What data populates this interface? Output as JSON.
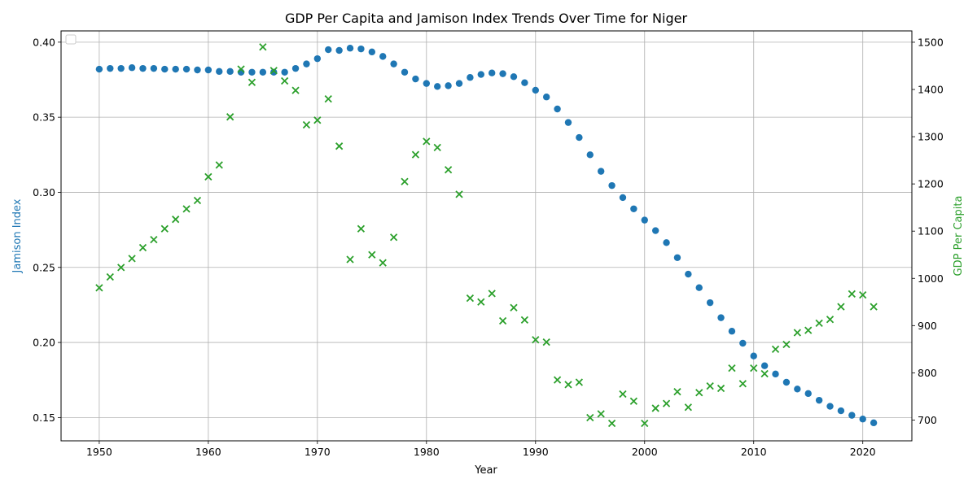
{
  "chart_data": {
    "type": "scatter",
    "title": "GDP Per Capita and Jamison Index Trends Over Time for Niger",
    "xlabel": "Year",
    "xlim": [
      1946.5,
      2024.5
    ],
    "xticks": [
      1950,
      1960,
      1970,
      1980,
      1990,
      2000,
      2010,
      2020
    ],
    "grid": true,
    "legend": {
      "placement": "upper-left",
      "entries": []
    },
    "left_axis": {
      "label": "Jamison Index",
      "color": "#1f77b4",
      "ylim": [
        0.1345,
        0.4075
      ],
      "ticks": [
        0.15,
        0.2,
        0.25,
        0.3,
        0.35,
        0.4
      ],
      "tick_labels": [
        "0.15",
        "0.20",
        "0.25",
        "0.30",
        "0.35",
        "0.40"
      ]
    },
    "right_axis": {
      "label": "GDP Per Capita",
      "color": "#2ca02c",
      "ylim": [
        656,
        1524
      ],
      "ticks": [
        700,
        800,
        900,
        1000,
        1100,
        1200,
        1300,
        1400,
        1500
      ],
      "tick_labels": [
        "700",
        "800",
        "900",
        "1000",
        "1100",
        "1200",
        "1300",
        "1400",
        "1500"
      ]
    },
    "series": [
      {
        "axis": "left",
        "marker": "circle",
        "color": "#1f77b4",
        "x": [
          1950,
          1951,
          1952,
          1953,
          1954,
          1955,
          1956,
          1957,
          1958,
          1959,
          1960,
          1961,
          1962,
          1963,
          1964,
          1965,
          1966,
          1967,
          1968,
          1969,
          1970,
          1971,
          1972,
          1973,
          1974,
          1975,
          1976,
          1977,
          1978,
          1979,
          1980,
          1981,
          1982,
          1983,
          1984,
          1985,
          1986,
          1987,
          1988,
          1989,
          1990,
          1991,
          1992,
          1993,
          1994,
          1995,
          1996,
          1997,
          1998,
          1999,
          2000,
          2001,
          2002,
          2003,
          2004,
          2005,
          2006,
          2007,
          2008,
          2009,
          2010,
          2011,
          2012,
          2013,
          2014,
          2015,
          2016,
          2017,
          2018,
          2019,
          2020,
          2021
        ],
        "y": [
          0.382,
          0.3825,
          0.3825,
          0.383,
          0.3825,
          0.3825,
          0.382,
          0.382,
          0.382,
          0.3815,
          0.3815,
          0.3805,
          0.3805,
          0.38,
          0.38,
          0.38,
          0.38,
          0.38,
          0.3825,
          0.3855,
          0.389,
          0.395,
          0.3945,
          0.396,
          0.3955,
          0.3935,
          0.3905,
          0.3855,
          0.38,
          0.3755,
          0.3725,
          0.3705,
          0.371,
          0.3725,
          0.3765,
          0.3785,
          0.3795,
          0.379,
          0.377,
          0.373,
          0.368,
          0.3635,
          0.3555,
          0.3465,
          0.3365,
          0.325,
          0.314,
          0.3045,
          0.2965,
          0.289,
          0.2815,
          0.2745,
          0.2665,
          0.2565,
          0.2455,
          0.2365,
          0.2265,
          0.2165,
          0.2075,
          0.1995,
          0.191,
          0.1845,
          0.179,
          0.1735,
          0.169,
          0.166,
          0.1615,
          0.1575,
          0.1545,
          0.1515,
          0.149,
          0.1465
        ]
      },
      {
        "axis": "right",
        "marker": "x",
        "color": "#2ca02c",
        "x": [
          1950,
          1951,
          1952,
          1953,
          1954,
          1955,
          1956,
          1957,
          1958,
          1959,
          1960,
          1961,
          1962,
          1963,
          1964,
          1965,
          1966,
          1967,
          1968,
          1969,
          1970,
          1971,
          1972,
          1973,
          1974,
          1975,
          1976,
          1977,
          1978,
          1979,
          1980,
          1981,
          1982,
          1983,
          1984,
          1985,
          1986,
          1987,
          1988,
          1989,
          1990,
          1991,
          1992,
          1993,
          1994,
          1995,
          1996,
          1997,
          1998,
          1999,
          2000,
          2001,
          2002,
          2003,
          2004,
          2005,
          2006,
          2007,
          2008,
          2009,
          2010,
          2011,
          2012,
          2013,
          2014,
          2015,
          2016,
          2017,
          2018,
          2019,
          2020,
          2021
        ],
        "y": [
          980,
          1003,
          1023,
          1042,
          1065,
          1082,
          1105,
          1125,
          1147,
          1165,
          1215,
          1240,
          1342,
          1443,
          1415,
          1490,
          1440,
          1418,
          1398,
          1325,
          1335,
          1380,
          1280,
          1040,
          1105,
          1050,
          1033,
          1087,
          1205,
          1262,
          1290,
          1277,
          1230,
          1178,
          958,
          950,
          968,
          910,
          938,
          912,
          870,
          865,
          785,
          775,
          780,
          705,
          713,
          693,
          755,
          740,
          693,
          725,
          735,
          760,
          727,
          758,
          772,
          767,
          810,
          777,
          810,
          798,
          850,
          860,
          885,
          890,
          905,
          913,
          940,
          967,
          965,
          940
        ]
      }
    ]
  }
}
